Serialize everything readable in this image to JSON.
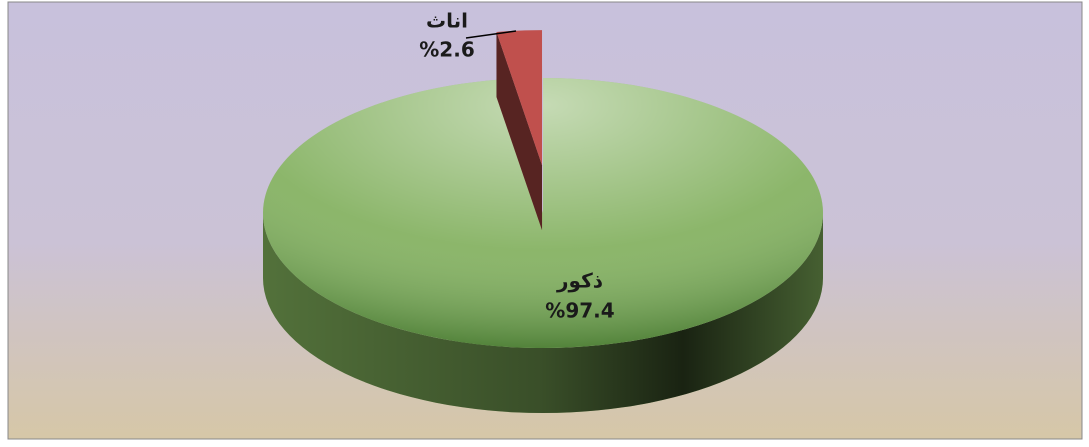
{
  "chart_data": {
    "type": "pie3d",
    "categories": [
      "ذكور",
      "اناث"
    ],
    "values": [
      97.4,
      2.6
    ],
    "value_labels": [
      "%97.4",
      "%2.6"
    ],
    "colors": [
      "#7fae5a",
      "#c0504d"
    ]
  }
}
